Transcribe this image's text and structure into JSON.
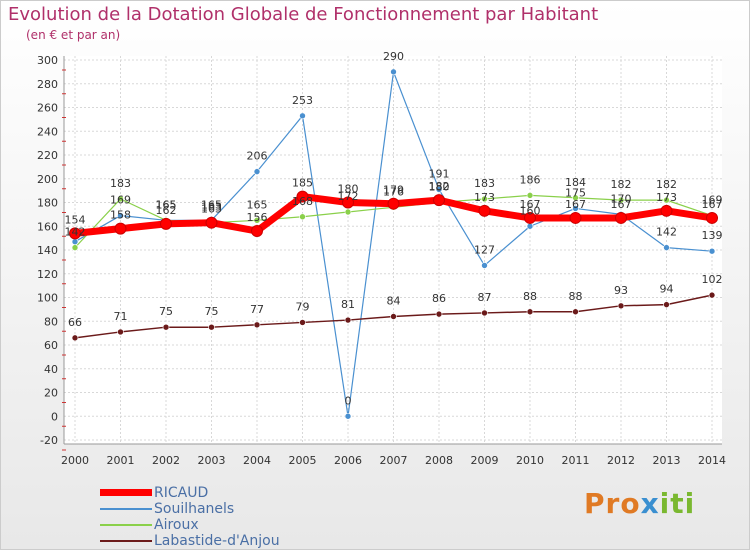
{
  "title": "Evolution de la Dotation Globale de Fonctionnement par Habitant",
  "subtitle": "(en € et par an)",
  "logo_text": "Proxiti",
  "chart_data": {
    "type": "line",
    "title": "Evolution de la Dotation Globale de Fonctionnement par Habitant",
    "subtitle": "(en € et par an)",
    "xlabel": "",
    "ylabel": "",
    "ylim": [
      -20,
      300
    ],
    "ytick_step": 20,
    "grid": true,
    "categories": [
      "2000",
      "2001",
      "2002",
      "2003",
      "2004",
      "2005",
      "2006",
      "2007",
      "2008",
      "2009",
      "2010",
      "2011",
      "2012",
      "2013",
      "2014"
    ],
    "series": [
      {
        "name": "RICAUD",
        "color": "#ff0000",
        "values": [
          154,
          158,
          162,
          163,
          156,
          185,
          180,
          179,
          182,
          173,
          167,
          167,
          167,
          173,
          167
        ],
        "labels": [
          "154",
          "158",
          "162",
          "163",
          "156",
          "185",
          "180",
          "179",
          "182",
          "173",
          "167",
          "167",
          "167",
          "173",
          "167"
        ]
      },
      {
        "name": "Souilhanels",
        "color": "#4a90d0",
        "values": [
          147,
          169,
          165,
          165,
          206,
          253,
          0,
          290,
          191,
          127,
          160,
          175,
          170,
          142,
          139
        ],
        "labels": [
          "",
          "169",
          "165",
          "165",
          "206",
          "253",
          "0",
          "290",
          "191",
          "127",
          "160",
          "175",
          "170",
          "142",
          "139"
        ]
      },
      {
        "name": "Airoux",
        "color": "#8ad04a",
        "values": [
          142,
          183,
          165,
          163,
          165,
          168,
          172,
          176,
          180,
          183,
          186,
          184,
          182,
          182,
          169
        ],
        "labels": [
          "142",
          "183",
          "165",
          "163",
          "165",
          "168",
          "172",
          "176",
          "180",
          "183",
          "186",
          "184",
          "182",
          "182",
          "169"
        ]
      },
      {
        "name": "Labastide-d'Anjou",
        "color": "#6b1a1a",
        "values": [
          66,
          71,
          75,
          75,
          77,
          79,
          81,
          84,
          86,
          87,
          88,
          88,
          93,
          94,
          102
        ],
        "labels": [
          "66",
          "71",
          "75",
          "75",
          "77",
          "79",
          "81",
          "84",
          "86",
          "87",
          "88",
          "88",
          "93",
          "94",
          "102"
        ]
      }
    ]
  }
}
